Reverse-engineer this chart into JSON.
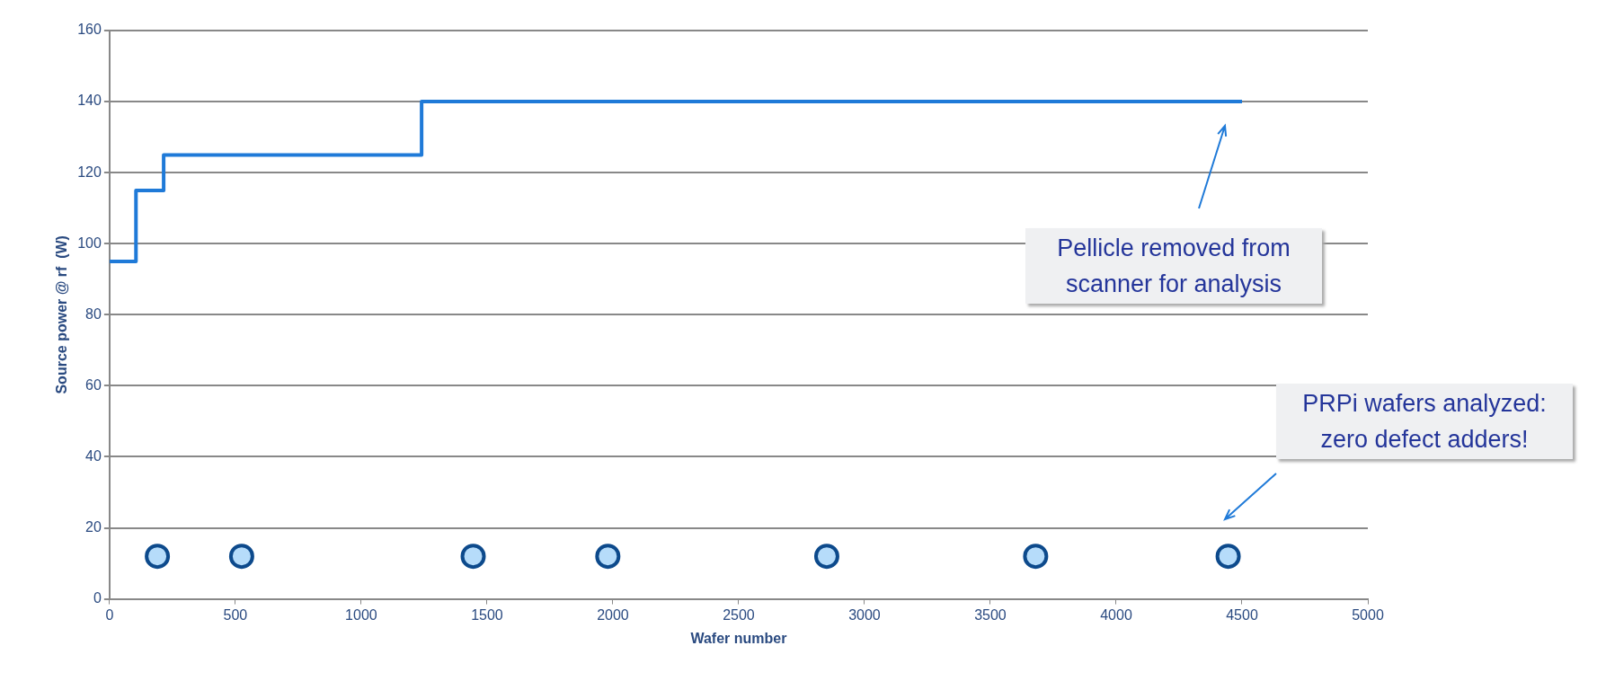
{
  "chart_data": {
    "type": "step",
    "xlabel": "Wafer number",
    "ylabel": "Source power @ rf  (W)",
    "xlim": [
      0,
      5000
    ],
    "xticks": [
      0,
      500,
      1000,
      1500,
      2000,
      2500,
      3000,
      3500,
      4000,
      4500,
      5000
    ],
    "ylim": [
      0,
      160
    ],
    "yticks": [
      0,
      20,
      40,
      60,
      80,
      100,
      120,
      140,
      160
    ],
    "grid": "y",
    "legend": false,
    "series": [
      {
        "color": "#1f7ad8",
        "x": [
          0,
          105,
          215,
          1240,
          4500
        ],
        "values": [
          95,
          115,
          125,
          140,
          140
        ],
        "marker": "none",
        "line_style": "solid"
      },
      {
        "type": "scatter",
        "color": "#0d4a8c",
        "x": [
          190,
          525,
          1445,
          1980,
          2850,
          3680,
          4445
        ],
        "values": [
          12,
          12,
          12,
          12,
          12,
          12,
          12
        ],
        "marker": "circle"
      }
    ],
    "annotations": [
      "Pellicle removed from scanner for analysis",
      "PRPi wafers analyzed: zero defect adders!"
    ]
  }
}
